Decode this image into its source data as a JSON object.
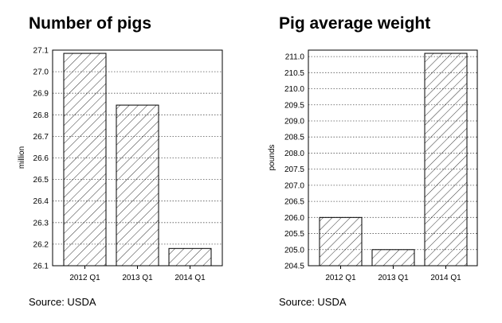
{
  "chart_data": [
    {
      "type": "bar",
      "title": "Number of pigs",
      "ylabel": "million",
      "xlabel": "",
      "source": "Source: USDA",
      "categories": [
        "2012 Q1",
        "2013 Q1",
        "2014 Q1"
      ],
      "values": [
        27.085,
        26.845,
        26.18
      ],
      "ylim": [
        26.1,
        27.1
      ],
      "yticks": [
        26.1,
        26.2,
        26.3,
        26.4,
        26.5,
        26.6,
        26.7,
        26.8,
        26.9,
        27.0,
        27.1
      ],
      "ytick_labels": [
        "26.1",
        "26.2",
        "26.3",
        "26.4",
        "26.5",
        "26.6",
        "26.7",
        "26.8",
        "26.9",
        "27.0",
        "27.1"
      ],
      "grid": true,
      "fill": "hatched"
    },
    {
      "type": "bar",
      "title": "Pig average weight",
      "ylabel": "pounds",
      "xlabel": "",
      "source": "Source: USDA",
      "categories": [
        "2012 Q1",
        "2013 Q1",
        "2014 Q1"
      ],
      "values": [
        206.0,
        205.0,
        211.1
      ],
      "ylim": [
        204.5,
        211.2
      ],
      "yticks": [
        204.5,
        205.0,
        205.5,
        206.0,
        206.5,
        207.0,
        207.5,
        208.0,
        208.5,
        209.0,
        209.5,
        210.0,
        210.5,
        211.0
      ],
      "ytick_labels": [
        "204.5",
        "205.0",
        "205.5",
        "206.0",
        "206.5",
        "207.0",
        "207.5",
        "208.0",
        "208.5",
        "209.0",
        "209.5",
        "210.0",
        "210.5",
        "211.0"
      ],
      "grid": true,
      "fill": "hatched"
    }
  ]
}
